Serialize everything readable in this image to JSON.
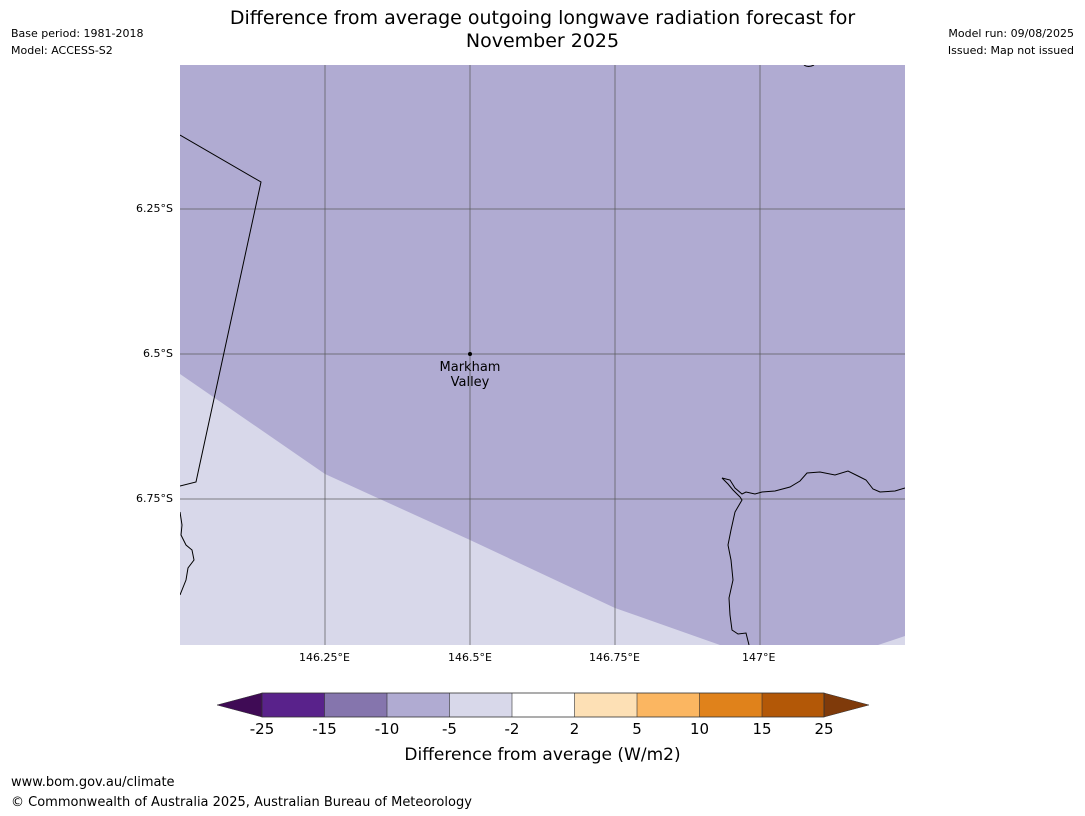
{
  "header": {
    "base_period": "Base period: 1981-2018",
    "model": "Model: ACCESS-S2",
    "model_run": "Model run: 09/08/2025",
    "issued": "Issued: Map not issued",
    "title_line1": "Difference from average outgoing longwave radiation forecast for",
    "title_line2": "November 2025"
  },
  "map": {
    "lat_labels": [
      "6.25°S",
      "6.5°S",
      "6.75°S"
    ],
    "lon_labels": [
      "146.25°E",
      "146.5°E",
      "146.75°E",
      "147°E"
    ],
    "place": {
      "name_line1": "Markham",
      "name_line2": "Valley",
      "lat": -6.5,
      "lon": 146.5
    },
    "colors": {
      "range_minus10_minus5": "#b0abd2",
      "range_minus5_minus2": "#d8d8ea"
    }
  },
  "colorbar": {
    "ticks": [
      "-25",
      "-15",
      "-10",
      "-5",
      "-2",
      "2",
      "5",
      "10",
      "15",
      "25"
    ],
    "colors": [
      "#3f0b55",
      "#59228b",
      "#8575ad",
      "#b0abd2",
      "#d8d8ea",
      "#ffffff",
      "#fde0b5",
      "#fbb661",
      "#e0821b",
      "#b35807",
      "#7f3a0a"
    ],
    "label": "Difference from average (W/m2)"
  },
  "footer": {
    "url": "www.bom.gov.au/climate",
    "copyright": "© Commonwealth of Australia 2025, Australian Bureau of Meteorology"
  }
}
